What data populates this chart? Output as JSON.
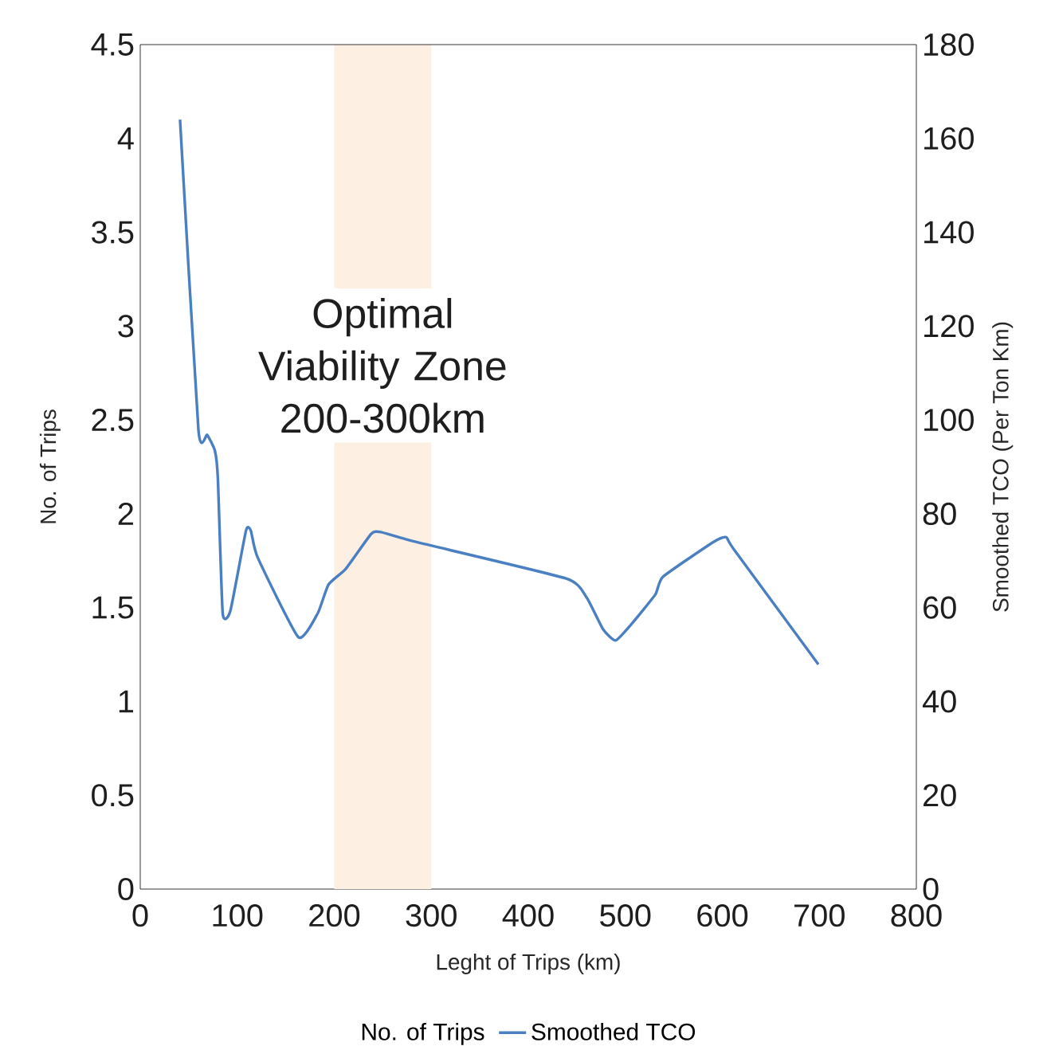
{
  "chart_data": {
    "type": "line",
    "xlabel": "Leght of Trips (km)",
    "ylabel": "No. of Trips",
    "y2label": "Smoothed TCO (Per Ton Km)",
    "xlim": [
      0,
      800
    ],
    "xticks": [
      0,
      100,
      200,
      300,
      400,
      500,
      600,
      700,
      800
    ],
    "ylim": [
      0,
      4.5
    ],
    "yticks": [
      0,
      0.5,
      1,
      1.5,
      2,
      2.5,
      3,
      3.5,
      4,
      4.5
    ],
    "y2lim": [
      0,
      180
    ],
    "y2ticks": [
      0,
      20,
      40,
      60,
      80,
      100,
      120,
      140,
      160,
      180
    ],
    "x": [
      41,
      60,
      69,
      77,
      80,
      85,
      93,
      109,
      114,
      121,
      163,
      183,
      194,
      212,
      238,
      248,
      284,
      439,
      460,
      477,
      490,
      506,
      531,
      539,
      591,
      604,
      612,
      699
    ],
    "series": [
      {
        "name": "No. of Trips",
        "values": [
          null,
          null,
          null,
          null,
          null,
          null,
          null,
          null,
          null,
          null,
          null,
          null,
          null,
          null,
          null,
          null,
          null,
          null,
          null,
          null,
          null,
          null,
          null,
          null,
          null,
          null,
          null,
          null
        ]
      },
      {
        "name": "Smoothed TCO",
        "axis": "y2",
        "color": "#4a7fc1",
        "values": [
          164,
          97.8,
          96.8,
          93.4,
          87.6,
          58.8,
          59.4,
          76.4,
          76.4,
          70.7,
          53.7,
          58.8,
          64.9,
          68.3,
          75.7,
          76.1,
          74,
          66.2,
          62.2,
          55.4,
          53,
          56.4,
          62.8,
          66.6,
          74,
          75,
          72.4,
          47.9
        ]
      }
    ],
    "bands": [
      {
        "axis": "x",
        "from": 200,
        "to": 300,
        "color": "#fdf0e3"
      }
    ],
    "annotations": [
      "Optimal Viability Zone 200-300km"
    ],
    "marker": "none",
    "line_style": "solid",
    "legend": "bottom"
  }
}
